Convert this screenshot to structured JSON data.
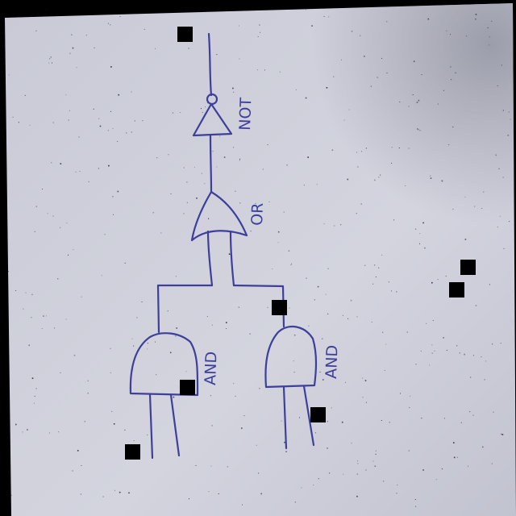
{
  "diagram": {
    "title": "",
    "gates": [
      {
        "id": "not",
        "type": "NOT",
        "label": "NOT"
      },
      {
        "id": "or",
        "type": "OR",
        "label": "OR"
      },
      {
        "id": "and_left",
        "type": "AND",
        "label": "AND"
      },
      {
        "id": "and_right",
        "type": "AND",
        "label": "AND"
      }
    ],
    "connections": [
      {
        "from": "and_left",
        "to": "or"
      },
      {
        "from": "and_right",
        "to": "or"
      },
      {
        "from": "or",
        "to": "not"
      }
    ],
    "inputs": 4,
    "outputs": 1
  },
  "colors": {
    "paper": "#cfd0da",
    "ink": "#3e3f9a",
    "background": "#000000"
  }
}
